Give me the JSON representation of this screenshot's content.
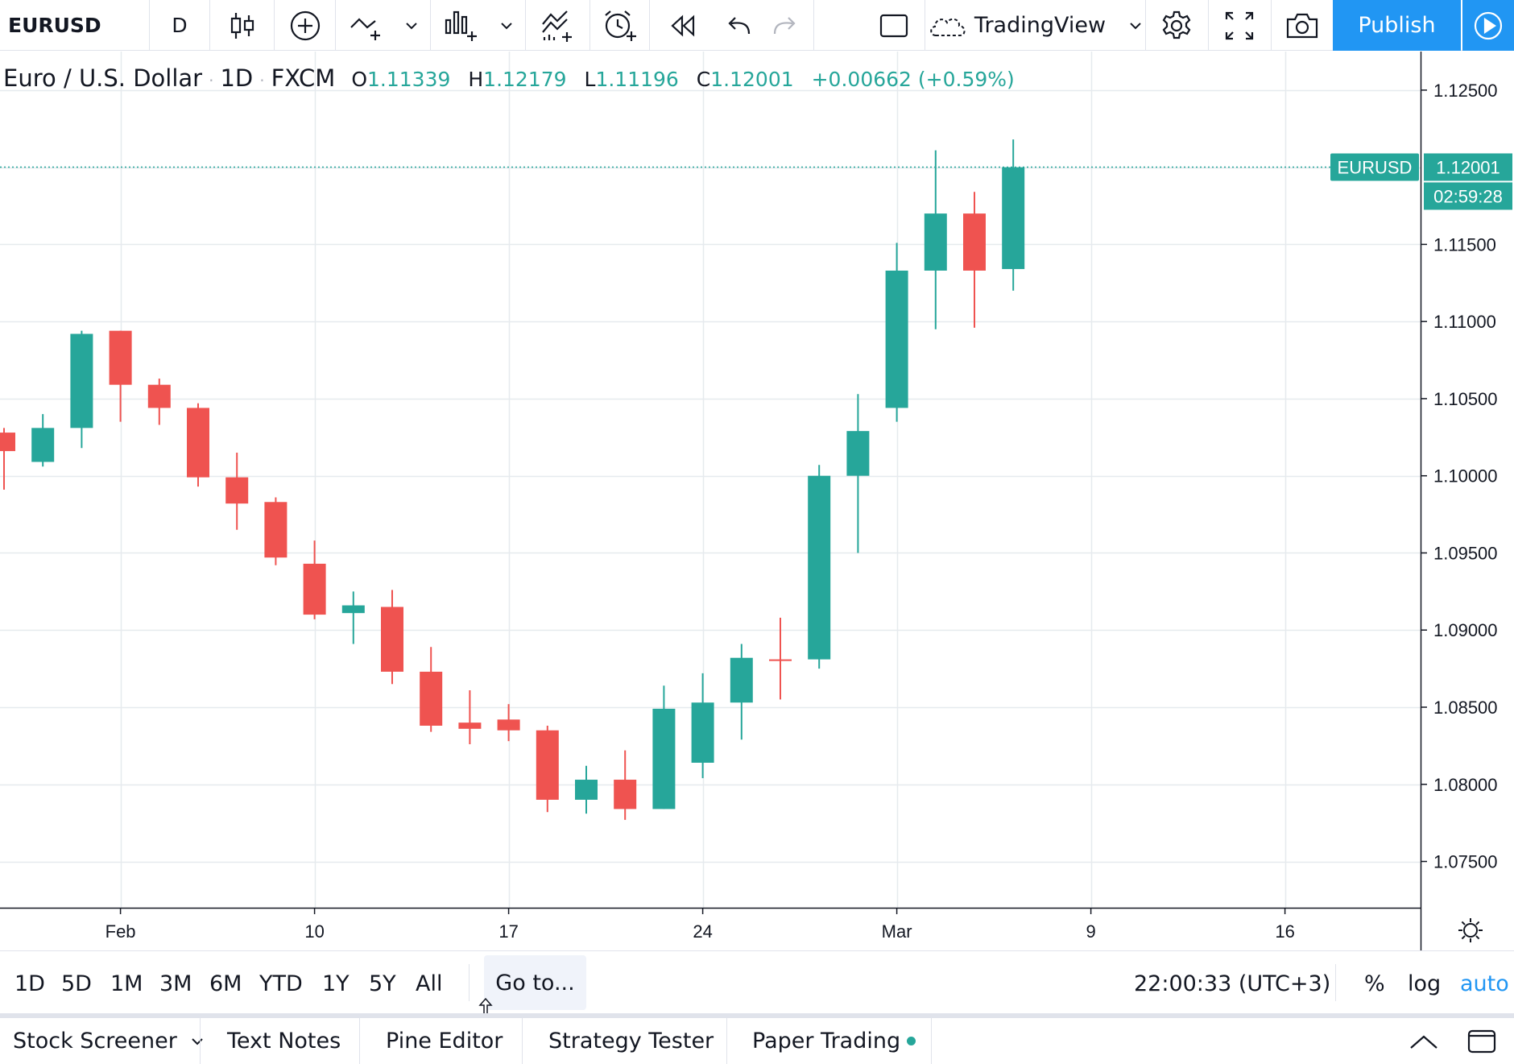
{
  "toolbar": {
    "symbol": "EURUSD",
    "interval": "D",
    "layout_name": "TradingView",
    "publish_label": "Publish",
    "icons": [
      "bar-style-icon",
      "compare-add-icon",
      "indicators-icon",
      "financials-icon",
      "templates-icon",
      "alert-icon",
      "replay-icon",
      "undo-icon",
      "redo-icon",
      "layout-icon",
      "cloud-icon",
      "settings-icon",
      "fullscreen-icon",
      "snapshot-icon",
      "play-icon"
    ]
  },
  "legend": {
    "title": "Euro / U.S. Dollar",
    "interval": "1D",
    "exchange": "FXCM",
    "o_key": "O",
    "open": "1.11339",
    "h_key": "H",
    "high": "1.12179",
    "l_key": "L",
    "low": "1.11196",
    "c_key": "C",
    "close": "1.12001",
    "change": "+0.00662 (+0.59%)"
  },
  "price_scale": {
    "ticks": [
      "1.12500",
      "1.11500",
      "1.11000",
      "1.10500",
      "1.10000",
      "1.09500",
      "1.09000",
      "1.08500",
      "1.08000",
      "1.07500"
    ],
    "symbol_label": "EURUSD",
    "last_price": "1.12001",
    "countdown": "02:59:28"
  },
  "time_scale": {
    "labels": [
      "Feb",
      "10",
      "17",
      "24",
      "Mar",
      "9",
      "16"
    ]
  },
  "range_bar": {
    "ranges": [
      "1D",
      "5D",
      "1M",
      "3M",
      "6M",
      "YTD",
      "1Y",
      "5Y",
      "All"
    ],
    "goto": "Go to...",
    "time": "22:00:33 (UTC+3)",
    "percent": "%",
    "log": "log",
    "auto": "auto"
  },
  "bottom_tabs": [
    "Stock Screener",
    "Text Notes",
    "Pine Editor",
    "Strategy Tester",
    "Paper Trading"
  ],
  "colors": {
    "up": "#26a69a",
    "down": "#ef5350",
    "accent": "#2196f3",
    "grid": "#e6eaee"
  },
  "chart_data": {
    "type": "candlestick",
    "series_name": "EURUSD",
    "ylim": [
      1.072,
      1.1275
    ],
    "candles": [
      {
        "o": 1.1028,
        "h": 1.1031,
        "l": 1.0991,
        "c": 1.1016
      },
      {
        "o": 1.1009,
        "h": 1.104,
        "l": 1.1006,
        "c": 1.1031
      },
      {
        "o": 1.1031,
        "h": 1.1094,
        "l": 1.1018,
        "c": 1.1092
      },
      {
        "o": 1.1094,
        "h": 1.1094,
        "l": 1.1035,
        "c": 1.1059
      },
      {
        "o": 1.1059,
        "h": 1.1063,
        "l": 1.1033,
        "c": 1.1044
      },
      {
        "o": 1.1044,
        "h": 1.1047,
        "l": 1.0993,
        "c": 1.0999
      },
      {
        "o": 1.0999,
        "h": 1.1015,
        "l": 1.0965,
        "c": 1.0982
      },
      {
        "o": 1.0983,
        "h": 1.0986,
        "l": 1.0942,
        "c": 1.0947
      },
      {
        "o": 1.0943,
        "h": 1.0958,
        "l": 1.0907,
        "c": 1.091
      },
      {
        "o": 1.0911,
        "h": 1.0925,
        "l": 1.0891,
        "c": 1.0916
      },
      {
        "o": 1.0915,
        "h": 1.0926,
        "l": 1.0865,
        "c": 1.0873
      },
      {
        "o": 1.0873,
        "h": 1.0889,
        "l": 1.0834,
        "c": 1.0838
      },
      {
        "o": 1.084,
        "h": 1.0861,
        "l": 1.0826,
        "c": 1.0836
      },
      {
        "o": 1.0842,
        "h": 1.0852,
        "l": 1.0828,
        "c": 1.0835
      },
      {
        "o": 1.0835,
        "h": 1.0838,
        "l": 1.0782,
        "c": 1.079
      },
      {
        "o": 1.079,
        "h": 1.0812,
        "l": 1.0781,
        "c": 1.0803
      },
      {
        "o": 1.0803,
        "h": 1.0822,
        "l": 1.0777,
        "c": 1.0784
      },
      {
        "o": 1.0784,
        "h": 1.0864,
        "l": 1.0784,
        "c": 1.0849
      },
      {
        "o": 1.0814,
        "h": 1.0872,
        "l": 1.0804,
        "c": 1.0853
      },
      {
        "o": 1.0853,
        "h": 1.0891,
        "l": 1.0829,
        "c": 1.0882
      },
      {
        "o": 1.0881,
        "h": 1.0908,
        "l": 1.0855,
        "c": 1.088
      },
      {
        "o": 1.0881,
        "h": 1.1007,
        "l": 1.0875,
        "c": 1.1
      },
      {
        "o": 1.1,
        "h": 1.1053,
        "l": 1.095,
        "c": 1.1029
      },
      {
        "o": 1.1044,
        "h": 1.1151,
        "l": 1.1035,
        "c": 1.1133
      },
      {
        "o": 1.1133,
        "h": 1.1211,
        "l": 1.1095,
        "c": 1.117
      },
      {
        "o": 1.117,
        "h": 1.1184,
        "l": 1.1096,
        "c": 1.1133
      },
      {
        "o": 1.1134,
        "h": 1.1218,
        "l": 1.112,
        "c": 1.12
      }
    ]
  }
}
